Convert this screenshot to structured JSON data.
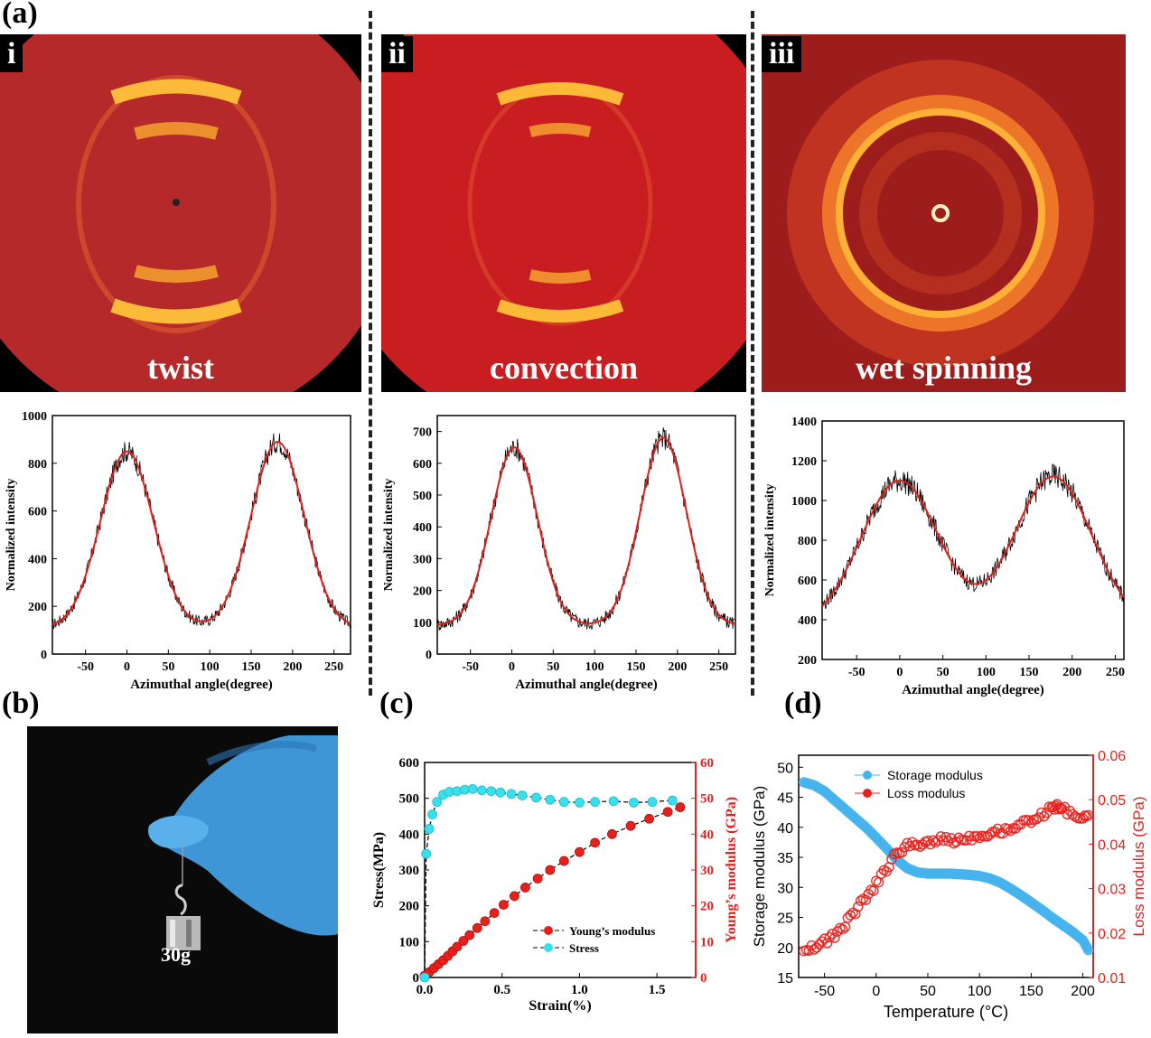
{
  "panel_labels": {
    "a": "(a)",
    "b": "(b)",
    "c": "(c)",
    "d": "(d)"
  },
  "patterns": [
    {
      "roman": "i",
      "label": "twist",
      "bg": "#b5292a"
    },
    {
      "roman": "ii",
      "label": "convection",
      "bg": "#c81e22"
    },
    {
      "roman": "iii",
      "label": "wet spinning",
      "bg": "#9c1d1b"
    }
  ],
  "photo": {
    "weight_label": "30g"
  },
  "chart_data": [
    {
      "id": "azimuthal-twist",
      "type": "line",
      "xlabel": "Azimuthal angle(degree)",
      "ylabel": "Normalized intensity",
      "xlim": [
        -90,
        270
      ],
      "ylim": [
        0,
        1000
      ],
      "xticks": [
        -50,
        0,
        50,
        100,
        150,
        200,
        250
      ],
      "yticks": [
        0,
        200,
        400,
        600,
        800,
        1000
      ],
      "baseline": 110,
      "peaks": [
        {
          "x": 0,
          "y": 850
        },
        {
          "x": 182,
          "y": 890
        }
      ],
      "width": 32,
      "noise": 40,
      "series": [
        {
          "color": "#000000",
          "noisy": true
        },
        {
          "color": "#e0201c",
          "noisy": false
        }
      ]
    },
    {
      "id": "azimuthal-convection",
      "type": "line",
      "xlabel": "Azimuthal angle(degree)",
      "ylabel": "Normalized intensity",
      "xlim": [
        -90,
        270
      ],
      "ylim": [
        0,
        750
      ],
      "xticks": [
        -50,
        0,
        50,
        100,
        150,
        200,
        250
      ],
      "yticks": [
        0,
        100,
        200,
        300,
        400,
        500,
        600,
        700
      ],
      "baseline": 90,
      "peaks": [
        {
          "x": 3,
          "y": 650
        },
        {
          "x": 183,
          "y": 680
        }
      ],
      "width": 28,
      "noise": 35,
      "series": [
        {
          "color": "#000000",
          "noisy": true
        },
        {
          "color": "#e0201c",
          "noisy": false
        }
      ]
    },
    {
      "id": "azimuthal-wet-spinning",
      "type": "line",
      "xlabel": "Azimuthal angle(degree)",
      "ylabel": "Normalized intensity",
      "xlim": [
        -90,
        260
      ],
      "ylim": [
        200,
        1400
      ],
      "xticks": [
        -50,
        0,
        50,
        100,
        150,
        200,
        250
      ],
      "yticks": [
        200,
        400,
        600,
        800,
        1000,
        1200,
        1400
      ],
      "baseline": 370,
      "peaks": [
        {
          "x": 0,
          "y": 1100
        },
        {
          "x": 178,
          "y": 1120
        }
      ],
      "width": 45,
      "noise": 55,
      "series": [
        {
          "color": "#000000",
          "noisy": true
        },
        {
          "color": "#e0201c",
          "noisy": false
        }
      ]
    },
    {
      "id": "stress-strain",
      "type": "line",
      "xlabel": "Strain(%)",
      "ylabel": "Stress(MPa)",
      "ylabel_right": "Young’s modulus (GPa)",
      "xlim": [
        0,
        1.75
      ],
      "ylim": [
        0,
        600
      ],
      "ylim_right": [
        0,
        60
      ],
      "xticks": [
        0.0,
        0.5,
        1.0,
        1.5
      ],
      "yticks": [
        0,
        100,
        200,
        300,
        400,
        500,
        600
      ],
      "yticks_right": [
        0,
        10,
        20,
        30,
        40,
        50,
        60
      ],
      "legend": "bottom-right",
      "series": [
        {
          "name": "Young’s modulus",
          "color": "#e8201c",
          "axis": "right",
          "x": [
            0,
            0.03,
            0.06,
            0.09,
            0.12,
            0.15,
            0.18,
            0.21,
            0.25,
            0.29,
            0.34,
            0.39,
            0.45,
            0.51,
            0.58,
            0.65,
            0.73,
            0.81,
            0.9,
            1.0,
            1.1,
            1.21,
            1.33,
            1.45,
            1.57,
            1.65
          ],
          "y": [
            0.5,
            1.5,
            2.6,
            3.7,
            4.8,
            6.0,
            7.3,
            8.6,
            10.2,
            11.8,
            13.8,
            15.7,
            18.0,
            20.3,
            22.7,
            25.1,
            27.6,
            30.0,
            32.5,
            35.0,
            37.6,
            40.0,
            42.3,
            44.3,
            46.2,
            47.5
          ]
        },
        {
          "name": "Stress",
          "color": "#38e0ee",
          "axis": "left",
          "x": [
            0.0,
            0.01,
            0.03,
            0.05,
            0.08,
            0.12,
            0.16,
            0.21,
            0.26,
            0.31,
            0.37,
            0.43,
            0.49,
            0.56,
            0.63,
            0.72,
            0.81,
            0.9,
            1.0,
            1.1,
            1.22,
            1.35,
            1.47,
            1.6
          ],
          "y": [
            0,
            345,
            415,
            455,
            490,
            510,
            518,
            520,
            524,
            526,
            522,
            520,
            516,
            512,
            508,
            502,
            496,
            490,
            488,
            490,
            492,
            488,
            490,
            494
          ]
        }
      ]
    },
    {
      "id": "dma",
      "type": "scatter",
      "xlabel": "Temperature (°C)",
      "ylabel": "Storage modulus (GPa)",
      "ylabel_right": "Loss modulus (GPa)",
      "xlim": [
        -75,
        210
      ],
      "ylim": [
        15,
        52
      ],
      "ylim_right": [
        0.01,
        0.06
      ],
      "xticks": [
        -50,
        0,
        50,
        100,
        150,
        200
      ],
      "yticks": [
        15,
        20,
        25,
        30,
        35,
        40,
        45,
        50
      ],
      "yticks_right": [
        0.01,
        0.02,
        0.03,
        0.04,
        0.05,
        0.06
      ],
      "legend": "top",
      "series": [
        {
          "name": "Storage modulus",
          "color": "#45b3ee",
          "axis": "left",
          "x": [
            -70,
            -60,
            -50,
            -40,
            -30,
            -20,
            -10,
            0,
            10,
            20,
            30,
            40,
            50,
            60,
            70,
            80,
            90,
            100,
            110,
            120,
            130,
            140,
            150,
            160,
            170,
            180,
            190,
            200,
            207
          ],
          "y": [
            47.5,
            47.0,
            46.0,
            44.5,
            43.0,
            41.5,
            40.0,
            38.3,
            36.5,
            34.6,
            33.2,
            32.5,
            32.3,
            32.3,
            32.3,
            32.2,
            32.1,
            31.9,
            31.5,
            30.8,
            29.8,
            28.7,
            27.5,
            26.3,
            25.0,
            23.8,
            22.6,
            21.2,
            19.0
          ]
        },
        {
          "name": "Loss modulus",
          "color": "#e8201c",
          "axis": "right",
          "x": [
            -70,
            -60,
            -50,
            -40,
            -30,
            -20,
            -10,
            0,
            10,
            20,
            30,
            40,
            50,
            60,
            70,
            80,
            90,
            100,
            110,
            120,
            130,
            140,
            150,
            160,
            170,
            175,
            180,
            190,
            200,
            207
          ],
          "y": [
            0.0165,
            0.017,
            0.018,
            0.0195,
            0.022,
            0.025,
            0.028,
            0.031,
            0.0345,
            0.038,
            0.0395,
            0.04,
            0.0405,
            0.041,
            0.041,
            0.041,
            0.0415,
            0.042,
            0.0425,
            0.043,
            0.0435,
            0.0445,
            0.0455,
            0.0465,
            0.048,
            0.0485,
            0.048,
            0.047,
            0.0455,
            0.046
          ]
        }
      ]
    }
  ]
}
